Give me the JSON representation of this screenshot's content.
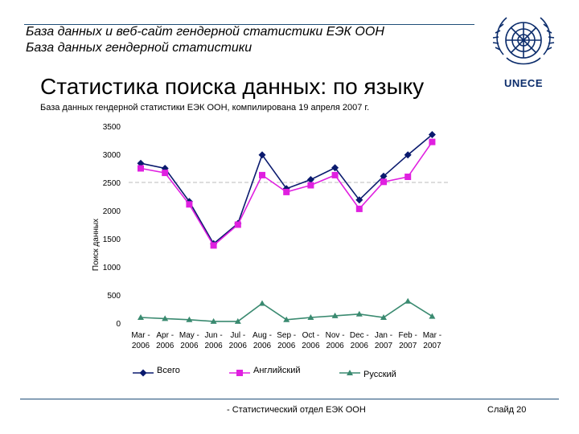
{
  "header": {
    "line1": "База данных и веб-сайт гендерной статистики ЕЭК ООН",
    "line2": "База данных гендерной статистики"
  },
  "logo": {
    "text": "UNECE"
  },
  "title": "Статистика поиска данных: по языку",
  "subtitle": "База данных гендерной статистики ЕЭК ООН, компилирована 19 апреля 2007 г.",
  "footer": {
    "left": "- Статистический отдел ЕЭК ООН",
    "right": "Слайд 20"
  },
  "colors": {
    "total": "#0a1a6e",
    "english": "#e020e0",
    "russian": "#3a8a70",
    "refline": "#bbbbbb"
  },
  "chart_data": {
    "type": "line",
    "ylabel": "Поиск данных",
    "xlabel": "",
    "ylim": [
      0,
      3500
    ],
    "yticks": [
      0,
      500,
      1000,
      1500,
      2000,
      2500,
      3000,
      3500
    ],
    "reference_line": 2500,
    "categories": [
      "Mar - 2006",
      "Apr - 2006",
      "May - 2006",
      "Jun - 2006",
      "Jul - 2006",
      "Aug - 2006",
      "Sep - 2006",
      "Oct - 2006",
      "Nov - 2006",
      "Dec - 2006",
      "Jan - 2007",
      "Feb - 2007",
      "Mar - 2007"
    ],
    "categories_lines": [
      [
        "Mar -",
        "2006"
      ],
      [
        "Apr -",
        "2006"
      ],
      [
        "May -",
        "2006"
      ],
      [
        "Jun -",
        "2006"
      ],
      [
        "Jul -",
        "2006"
      ],
      [
        "Aug -",
        "2006"
      ],
      [
        "Sep -",
        "2006"
      ],
      [
        "Oct -",
        "2006"
      ],
      [
        "Nov -",
        "2006"
      ],
      [
        "Dec -",
        "2006"
      ],
      [
        "Jan -",
        "2007"
      ],
      [
        "Feb -",
        "2007"
      ],
      [
        "Mar -",
        "2007"
      ]
    ],
    "series": [
      {
        "name": "Всего",
        "marker": "diamond",
        "values": [
          2840,
          2750,
          2160,
          1410,
          1770,
          2990,
          2390,
          2550,
          2760,
          2190,
          2610,
          2990,
          3350
        ]
      },
      {
        "name": "Английский",
        "marker": "square",
        "values": [
          2750,
          2670,
          2110,
          1380,
          1750,
          2630,
          2330,
          2450,
          2630,
          2030,
          2510,
          2600,
          3220
        ]
      },
      {
        "name": "Русский",
        "marker": "triangle",
        "values": [
          100,
          80,
          60,
          30,
          30,
          350,
          60,
          100,
          130,
          160,
          100,
          390,
          120
        ]
      }
    ],
    "legend_position": "bottom",
    "grid": false
  }
}
